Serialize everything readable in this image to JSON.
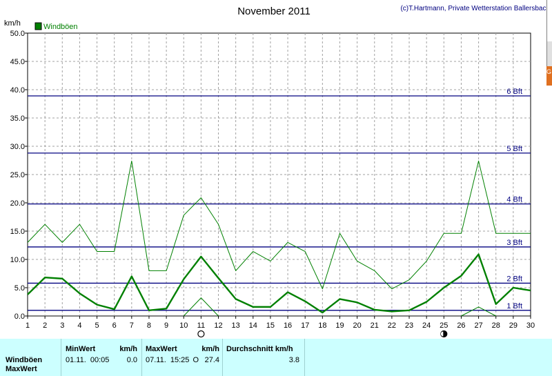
{
  "chart_data": {
    "type": "line",
    "title": "November 2011",
    "credit": "(c)T.Hartmann, Private Wetterstation Ballersbach",
    "ylabel": "km/h",
    "ylim": [
      0,
      50
    ],
    "yticks": [
      "0.0",
      "5.0",
      "10.0",
      "15.0",
      "20.0",
      "25.0",
      "30.0",
      "35.0",
      "40.0",
      "45.0",
      "50.0"
    ],
    "x": [
      1,
      2,
      3,
      4,
      5,
      6,
      7,
      8,
      9,
      10,
      11,
      12,
      13,
      14,
      15,
      16,
      17,
      18,
      19,
      20,
      21,
      22,
      23,
      24,
      25,
      26,
      27,
      28,
      29,
      30
    ],
    "xlim": [
      1,
      30
    ],
    "grid": true,
    "legend": {
      "position": "top-left",
      "label": "Windböen",
      "color": "#008000"
    },
    "series": [
      {
        "name": "Windböen",
        "style": "max",
        "color": "#008000",
        "values": [
          13.0,
          16.2,
          13.0,
          16.2,
          11.4,
          11.4,
          27.4,
          8.0,
          8.0,
          17.8,
          20.9,
          16.2,
          8.0,
          11.4,
          9.7,
          13.0,
          11.4,
          4.8,
          14.6,
          9.7,
          8.0,
          4.8,
          6.4,
          9.7,
          14.6,
          14.6,
          27.4,
          14.6,
          14.6,
          14.6
        ]
      },
      {
        "style": "avg",
        "color": "#008000",
        "values": [
          3.8,
          6.8,
          6.6,
          4.0,
          2.0,
          1.2,
          7.0,
          1.0,
          1.3,
          6.5,
          10.5,
          6.7,
          3.0,
          1.6,
          1.6,
          4.2,
          2.6,
          0.6,
          3.0,
          2.4,
          1.1,
          0.8,
          1.0,
          2.5,
          5.0,
          7.1,
          10.9,
          2.1,
          5.0,
          4.5
        ]
      },
      {
        "style": "min",
        "color": "#008000",
        "segments": [
          [
            [
              10,
              0
            ],
            [
              11,
              3.2
            ],
            [
              12,
              0
            ]
          ],
          [
            [
              26,
              0
            ],
            [
              27,
              1.6
            ],
            [
              28,
              0
            ]
          ]
        ]
      }
    ],
    "reference_lines": [
      {
        "label": "1 Bft",
        "value": 1.0
      },
      {
        "label": "2 Bft",
        "value": 5.8
      },
      {
        "label": "3 Bft",
        "value": 12.2
      },
      {
        "label": "4 Bft",
        "value": 19.8
      },
      {
        "label": "5 Bft",
        "value": 28.8
      },
      {
        "label": "6 Bft",
        "value": 38.9
      }
    ],
    "moon_phases": [
      {
        "day": 11,
        "phase": "full"
      },
      {
        "day": 25,
        "phase": "new"
      }
    ],
    "reference_color": "#000080"
  },
  "stats": {
    "header": {
      "min": "MinWert",
      "unit1": "km/h",
      "max": "MaxWert",
      "unit2": "km/h",
      "avg": "Durchschnitt km/h"
    },
    "rows": [
      {
        "label": "Windböen",
        "min_time": "01.11.  00:05",
        "min_val": "0.0",
        "max_time": "07.11.  15:25",
        "max_dir": "O",
        "max_val": "27.4",
        "avg": "3.8"
      },
      {
        "label": "MaxWert"
      }
    ]
  }
}
